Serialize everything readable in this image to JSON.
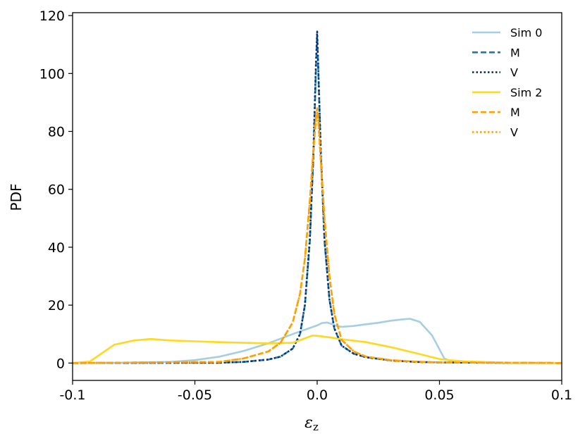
{
  "chart_data": {
    "type": "line",
    "xlabel_base": "ε",
    "xlabel_sub": "z",
    "ylabel": "PDF",
    "xlim": [
      -0.1,
      0.1
    ],
    "ylim": [
      -6,
      121
    ],
    "xticks": [
      -0.1,
      -0.05,
      0.0,
      0.05,
      0.1
    ],
    "xtick_labels": [
      "-0.1",
      "-0.05",
      "0.0",
      "0.05",
      "0.1"
    ],
    "yticks": [
      0,
      20,
      40,
      60,
      80,
      100,
      120
    ],
    "ytick_labels": [
      "0",
      "20",
      "40",
      "60",
      "80",
      "100",
      "120"
    ],
    "grid": false,
    "legend_position": "top-right",
    "series": [
      {
        "name": "Sim 0",
        "color": "#a6cee3",
        "style": "solid",
        "x": [
          -0.1,
          -0.08,
          -0.06,
          -0.05,
          -0.04,
          -0.03,
          -0.02,
          -0.01,
          0.0,
          0.002,
          0.004,
          0.006,
          0.008,
          0.01,
          0.015,
          0.02,
          0.025,
          0.03,
          0.035,
          0.038,
          0.042,
          0.047,
          0.052,
          0.055,
          0.06,
          0.08,
          0.1
        ],
        "y": [
          0,
          0.1,
          0.4,
          1.0,
          2.2,
          4.2,
          6.8,
          10.0,
          13.0,
          13.8,
          14.0,
          13.5,
          12.8,
          12.5,
          12.8,
          13.4,
          13.9,
          14.6,
          15.1,
          15.3,
          14.2,
          9.5,
          1.6,
          0.5,
          0.2,
          0,
          0
        ]
      },
      {
        "name": "M",
        "color": "#1f78b4",
        "style": "dashed",
        "x": [
          -0.1,
          -0.04,
          -0.03,
          -0.02,
          -0.015,
          -0.01,
          -0.007,
          -0.005,
          -0.003,
          -0.0015,
          -0.0005,
          0.0,
          0.0005,
          0.0015,
          0.003,
          0.005,
          0.007,
          0.01,
          0.015,
          0.02,
          0.03,
          0.04,
          0.05,
          0.1
        ],
        "y": [
          0,
          0.1,
          0.4,
          1.2,
          2.2,
          5.0,
          10.0,
          20.0,
          42.0,
          72.0,
          102.0,
          113.0,
          100.0,
          72.0,
          42.0,
          22.0,
          12.0,
          6.0,
          3.2,
          2.0,
          0.9,
          0.4,
          0.2,
          0
        ]
      },
      {
        "name": "V",
        "color": "#08306b",
        "style": "dotted",
        "x": [
          -0.1,
          -0.04,
          -0.03,
          -0.02,
          -0.015,
          -0.01,
          -0.007,
          -0.005,
          -0.003,
          -0.0015,
          -0.0005,
          0.0,
          0.0005,
          0.0015,
          0.003,
          0.005,
          0.007,
          0.01,
          0.015,
          0.02,
          0.03,
          0.04,
          0.05,
          0.1
        ],
        "y": [
          0,
          0.1,
          0.4,
          1.2,
          2.2,
          5.0,
          10.0,
          20.0,
          43.0,
          74.0,
          104.0,
          114.5,
          101.0,
          73.0,
          43.0,
          22.0,
          12.0,
          6.0,
          3.2,
          2.0,
          0.9,
          0.4,
          0.2,
          0
        ]
      },
      {
        "name": "Sim 2",
        "color": "#ffd81f",
        "style": "solid",
        "x": [
          -0.1,
          -0.093,
          -0.083,
          -0.075,
          -0.068,
          -0.06,
          -0.05,
          -0.04,
          -0.03,
          -0.02,
          -0.01,
          -0.006,
          -0.002,
          0.0,
          0.005,
          0.01,
          0.02,
          0.03,
          0.04,
          0.05,
          0.055,
          0.06,
          0.07,
          0.08,
          0.1
        ],
        "y": [
          0,
          0.5,
          6.3,
          7.8,
          8.3,
          7.8,
          7.5,
          7.2,
          7.0,
          6.8,
          7.0,
          8.2,
          9.5,
          9.4,
          8.9,
          8.2,
          7.2,
          5.5,
          3.5,
          1.4,
          0.9,
          0.6,
          0.3,
          0.1,
          0
        ]
      },
      {
        "name": "M",
        "color": "#ff9f00",
        "style": "dashed",
        "x": [
          -0.1,
          -0.04,
          -0.03,
          -0.02,
          -0.015,
          -0.01,
          -0.007,
          -0.005,
          -0.003,
          -0.0015,
          -0.0005,
          0.0,
          0.0005,
          0.0015,
          0.003,
          0.005,
          0.007,
          0.01,
          0.015,
          0.02,
          0.03,
          0.04,
          0.05,
          0.1
        ],
        "y": [
          0,
          0.4,
          1.6,
          4.0,
          7.0,
          14.0,
          24.0,
          36.0,
          56.0,
          74.0,
          85.0,
          88.0,
          84.0,
          70.0,
          50.0,
          30.0,
          17.0,
          8.0,
          4.0,
          2.2,
          1.0,
          0.5,
          0.2,
          0
        ]
      },
      {
        "name": "V",
        "color": "#ff9f00",
        "style": "dotted",
        "x": [
          -0.1,
          -0.04,
          -0.03,
          -0.02,
          -0.015,
          -0.01,
          -0.007,
          -0.005,
          -0.003,
          -0.0015,
          -0.0005,
          0.0,
          0.0005,
          0.0015,
          0.003,
          0.005,
          0.007,
          0.01,
          0.015,
          0.02,
          0.03,
          0.04,
          0.05,
          0.1
        ],
        "y": [
          0,
          0.4,
          1.6,
          4.0,
          7.0,
          14.0,
          24.0,
          36.0,
          56.0,
          74.0,
          84.0,
          87.0,
          83.0,
          69.0,
          49.0,
          30.0,
          17.0,
          8.0,
          4.0,
          2.2,
          1.0,
          0.5,
          0.2,
          0
        ]
      }
    ]
  }
}
